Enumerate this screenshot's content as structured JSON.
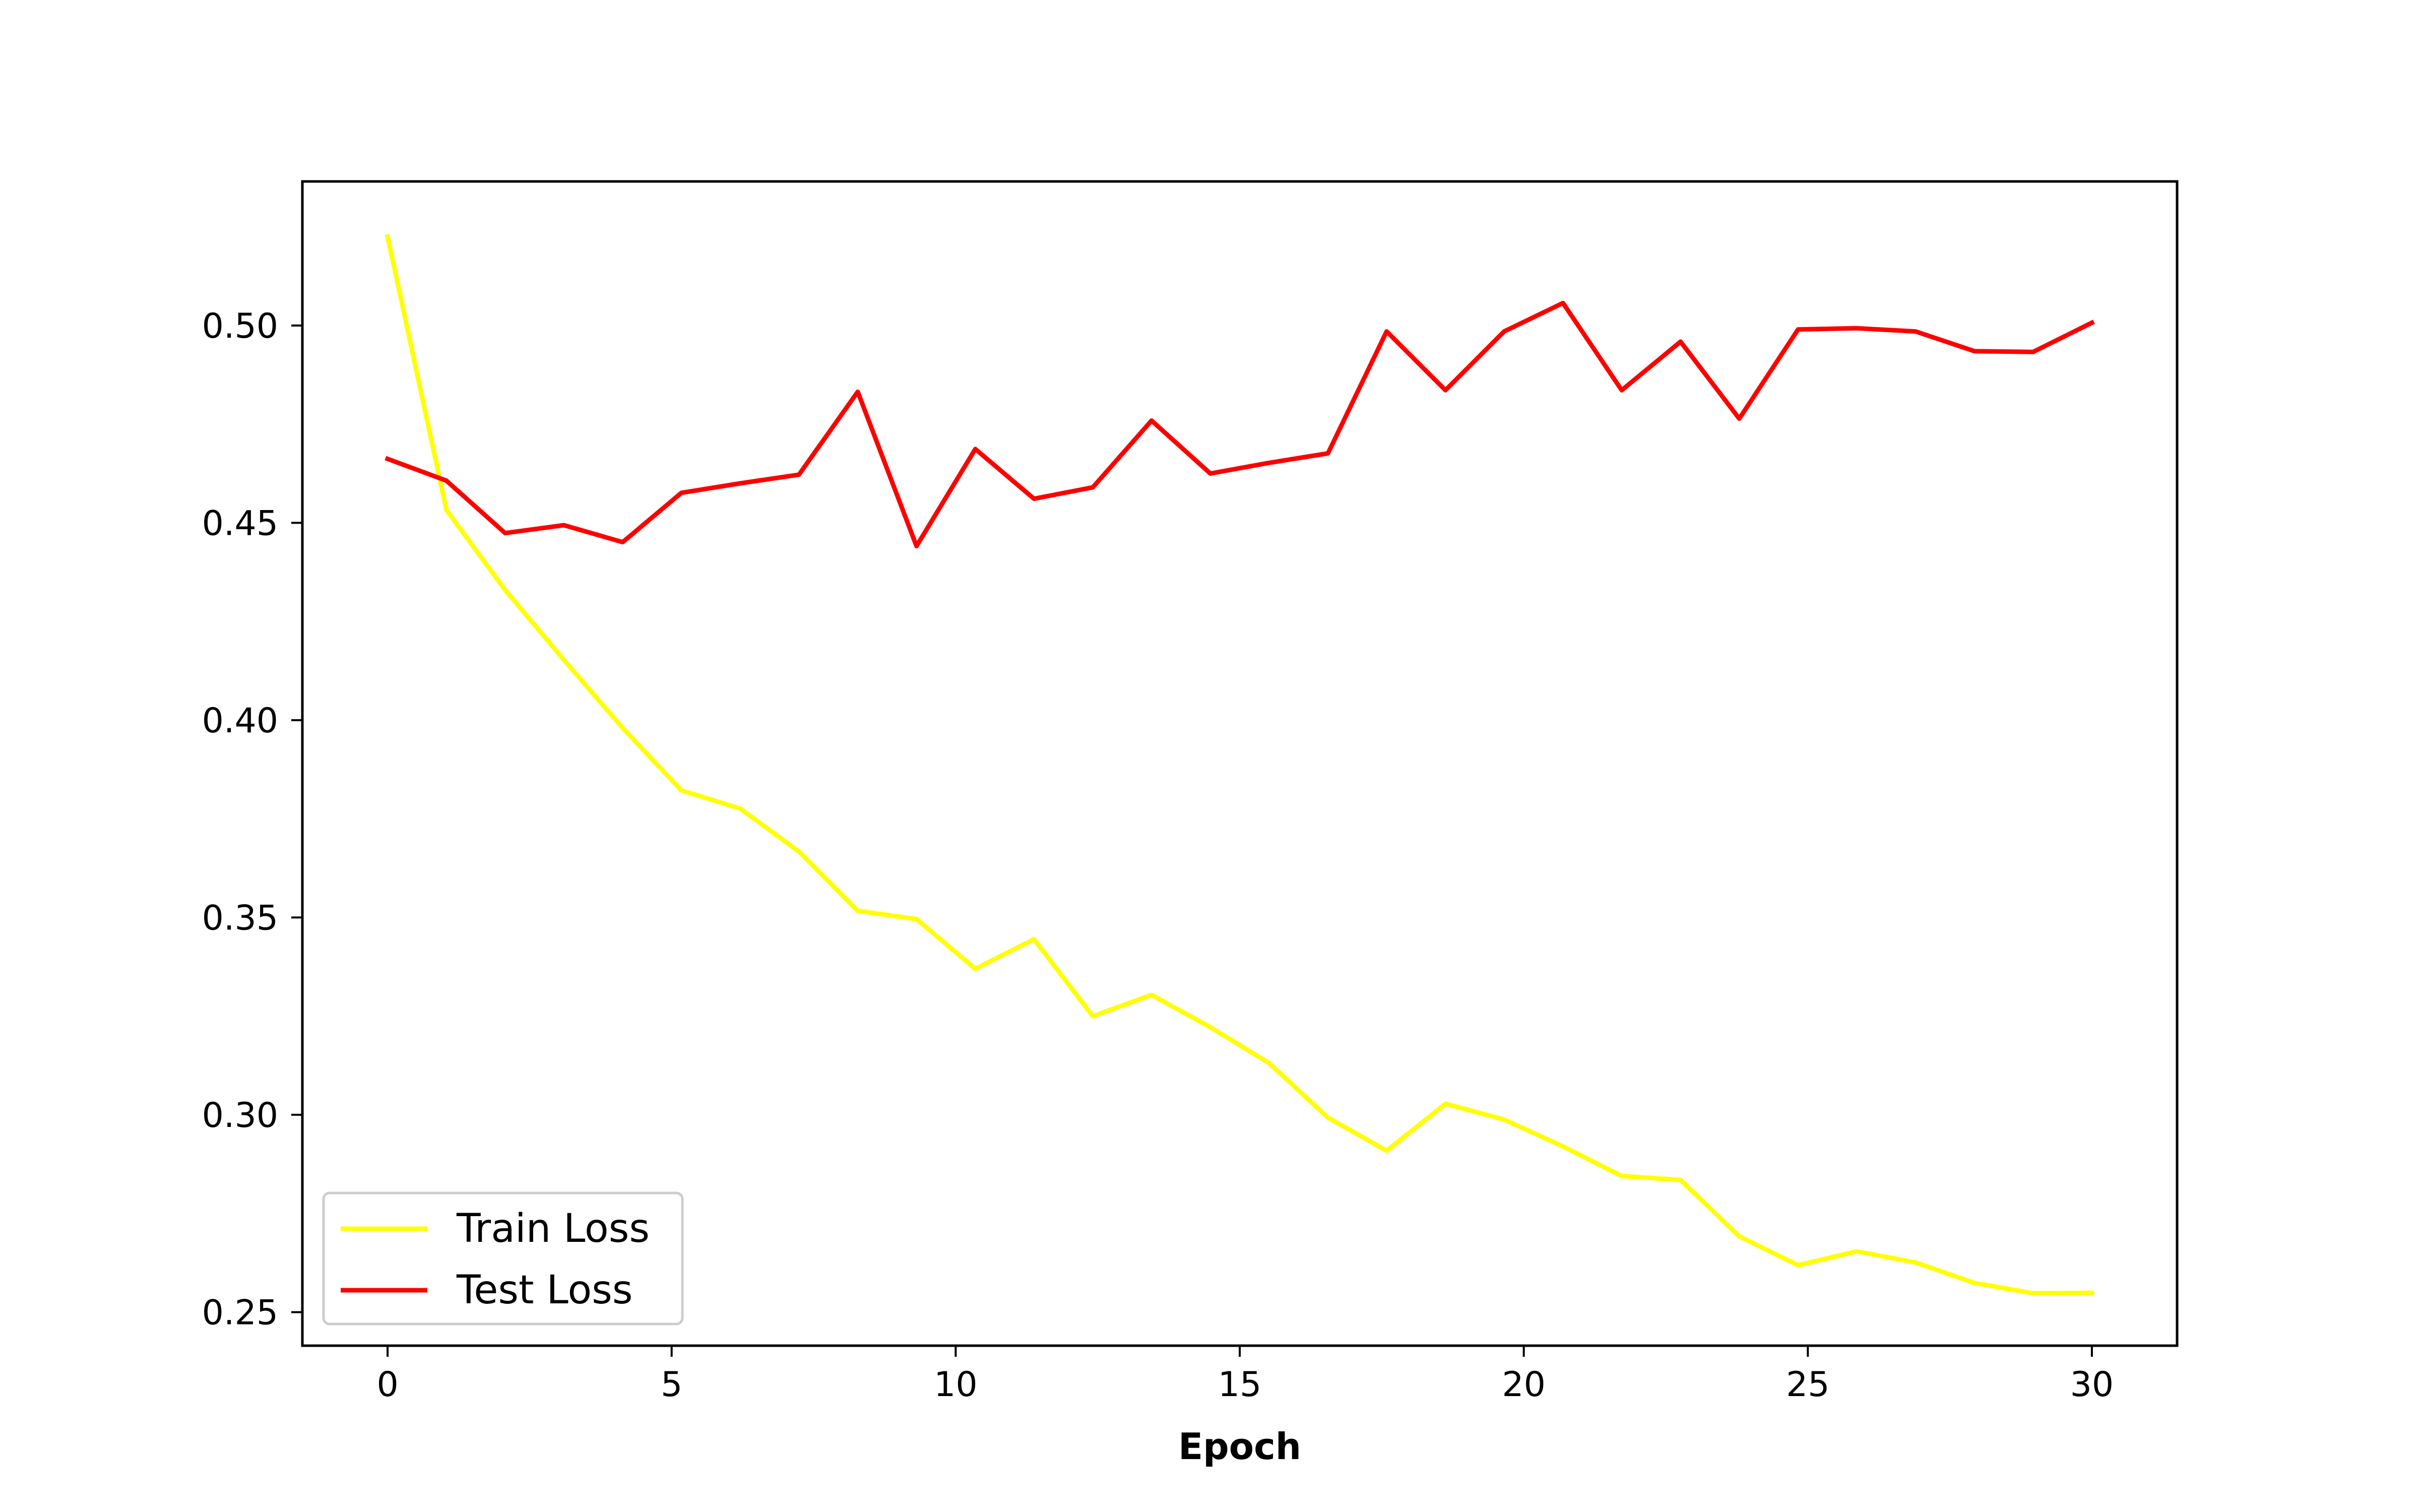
{
  "chart_data": {
    "type": "line",
    "title": "",
    "xlabel": "Epoch",
    "ylabel": "",
    "xlim": [
      -1.5,
      31.5
    ],
    "ylim": [
      0.2415,
      0.5365
    ],
    "xticks": [
      0,
      5,
      10,
      15,
      20,
      25,
      30
    ],
    "yticks": [
      0.25,
      0.3,
      0.35,
      0.4,
      0.45,
      0.5
    ],
    "ytick_labels": [
      "0.25",
      "0.30",
      "0.35",
      "0.40",
      "0.45",
      "0.50"
    ],
    "x": [
      0,
      1.034,
      2.069,
      3.103,
      4.138,
      5.172,
      6.207,
      7.241,
      8.276,
      9.31,
      10.345,
      11.379,
      12.414,
      13.448,
      14.483,
      15.517,
      16.552,
      17.586,
      18.621,
      19.655,
      20.69,
      21.724,
      22.759,
      23.793,
      24.828,
      25.862,
      26.897,
      27.931,
      28.966,
      30.0
    ],
    "grid": false,
    "legend_position": "lower-left",
    "series": [
      {
        "name": "Train Loss",
        "color": "#ffff00",
        "values": [
          0.5225,
          0.4533,
          0.433,
          0.4153,
          0.398,
          0.3822,
          0.3776,
          0.3667,
          0.3517,
          0.3496,
          0.337,
          0.3445,
          0.325,
          0.3304,
          0.3222,
          0.3131,
          0.2993,
          0.2909,
          0.3028,
          0.2988,
          0.292,
          0.2845,
          0.2835,
          0.2692,
          0.2619,
          0.2654,
          0.2626,
          0.2574,
          0.2548,
          0.2549
        ]
      },
      {
        "name": "Test Loss",
        "color": "#ff0000",
        "values": [
          0.4662,
          0.4607,
          0.4474,
          0.4494,
          0.4451,
          0.4576,
          0.46,
          0.4622,
          0.4832,
          0.4441,
          0.4687,
          0.4561,
          0.459,
          0.4759,
          0.4625,
          0.4652,
          0.4676,
          0.4985,
          0.4836,
          0.4985,
          0.5057,
          0.4836,
          0.4959,
          0.4764,
          0.499,
          0.4993,
          0.4985,
          0.4935,
          0.4933,
          0.5007
        ]
      }
    ]
  }
}
